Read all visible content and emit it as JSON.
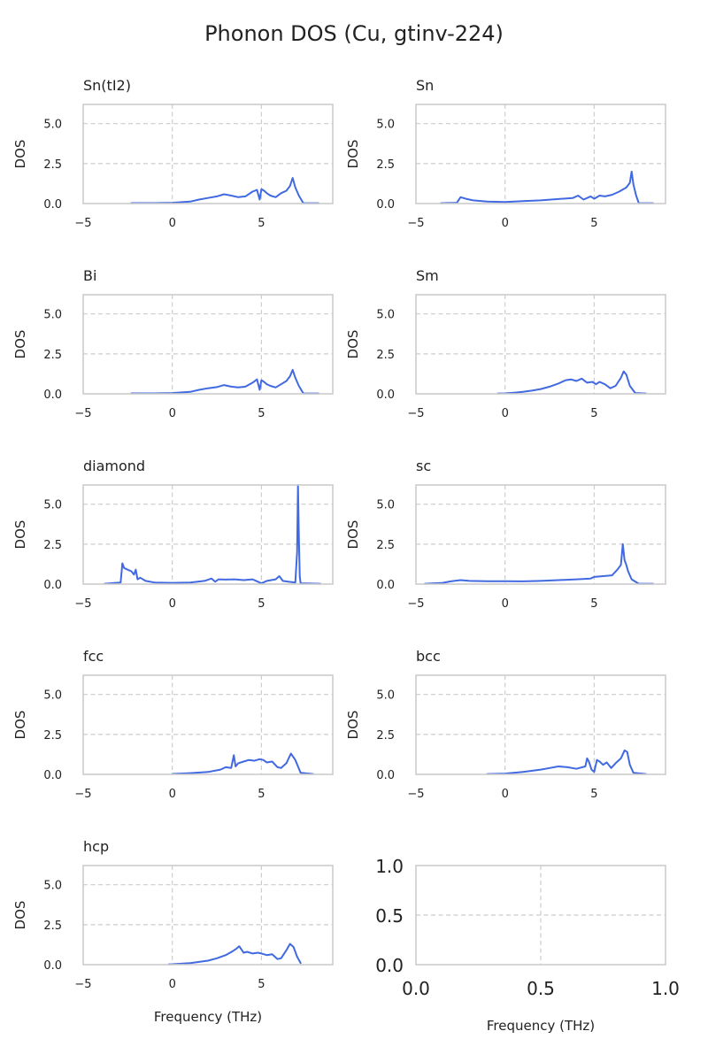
{
  "figure": {
    "title": "Phonon DOS (Cu, gtinv-224)",
    "xlabel": "Frequency (THz)",
    "ylabel": "DOS",
    "line_color": "#4169e1",
    "grid_color": "#cccccc"
  },
  "chart_data": [
    {
      "type": "line",
      "title": "Sn(tI2)",
      "xlim": [
        -5,
        9
      ],
      "ylim": [
        0,
        6.2
      ],
      "xticks": [
        -5,
        0,
        5
      ],
      "yticks": [
        0.0,
        2.5,
        5.0
      ],
      "ytick_labels": [
        "0.0",
        "2.5",
        "5.0"
      ],
      "grid": true,
      "ylabel": "DOS",
      "xlabel": "",
      "series": [
        {
          "x": [
            -2.3,
            -1,
            0,
            1,
            1.5,
            2,
            2.5,
            2.9,
            3.3,
            3.7,
            4.1,
            4.5,
            4.75,
            4.9,
            5.0,
            5.15,
            5.3,
            5.5,
            5.8,
            6.1,
            6.4,
            6.6,
            6.75,
            6.9,
            7.1,
            7.35,
            8.2
          ],
          "y": [
            0.03,
            0.03,
            0.05,
            0.12,
            0.25,
            0.35,
            0.45,
            0.58,
            0.5,
            0.4,
            0.45,
            0.75,
            0.85,
            0.25,
            0.9,
            0.8,
            0.65,
            0.5,
            0.4,
            0.65,
            0.8,
            1.1,
            1.6,
            1.0,
            0.5,
            0.02,
            0.02
          ]
        }
      ]
    },
    {
      "type": "line",
      "title": "Sn",
      "xlim": [
        -5,
        9
      ],
      "ylim": [
        0,
        6.2
      ],
      "xticks": [
        -5,
        0,
        5
      ],
      "yticks": [
        0.0,
        2.5,
        5.0
      ],
      "ytick_labels": [
        "0.0",
        "2.5",
        "5.0"
      ],
      "grid": true,
      "ylabel": "DOS",
      "xlabel": "",
      "series": [
        {
          "x": [
            -3.6,
            -2.7,
            -2.5,
            -2.2,
            -1.8,
            -1,
            0,
            1,
            2,
            3,
            3.8,
            4.1,
            4.4,
            4.8,
            5.0,
            5.3,
            5.6,
            6.0,
            6.4,
            6.8,
            7.0,
            7.1,
            7.2,
            7.35,
            7.5,
            8.3
          ],
          "y": [
            0.02,
            0.05,
            0.4,
            0.3,
            0.2,
            0.12,
            0.1,
            0.15,
            0.2,
            0.28,
            0.35,
            0.5,
            0.25,
            0.45,
            0.3,
            0.5,
            0.45,
            0.55,
            0.75,
            1.0,
            1.3,
            2.0,
            1.2,
            0.5,
            0.02,
            0.02
          ]
        }
      ]
    },
    {
      "type": "line",
      "title": "Bi",
      "xlim": [
        -5,
        9
      ],
      "ylim": [
        0,
        6.2
      ],
      "xticks": [
        -5,
        0,
        5
      ],
      "yticks": [
        0.0,
        2.5,
        5.0
      ],
      "ytick_labels": [
        "0.0",
        "2.5",
        "5.0"
      ],
      "grid": true,
      "ylabel": "DOS",
      "xlabel": "",
      "series": [
        {
          "x": [
            -2.3,
            -1,
            0,
            1,
            1.5,
            2,
            2.5,
            2.9,
            3.3,
            3.7,
            4.1,
            4.5,
            4.75,
            4.9,
            5.0,
            5.15,
            5.3,
            5.5,
            5.8,
            6.1,
            6.4,
            6.6,
            6.75,
            6.9,
            7.1,
            7.35,
            8.2
          ],
          "y": [
            0.03,
            0.03,
            0.05,
            0.12,
            0.25,
            0.35,
            0.42,
            0.55,
            0.45,
            0.4,
            0.45,
            0.7,
            0.9,
            0.25,
            0.85,
            0.75,
            0.6,
            0.5,
            0.4,
            0.6,
            0.8,
            1.1,
            1.5,
            1.0,
            0.5,
            0.02,
            0.02
          ]
        }
      ]
    },
    {
      "type": "line",
      "title": "Sm",
      "xlim": [
        -5,
        9
      ],
      "ylim": [
        0,
        6.2
      ],
      "xticks": [
        -5,
        0,
        5
      ],
      "yticks": [
        0.0,
        2.5,
        5.0
      ],
      "ytick_labels": [
        "0.0",
        "2.5",
        "5.0"
      ],
      "grid": true,
      "ylabel": "DOS",
      "xlabel": "",
      "series": [
        {
          "x": [
            -0.4,
            0,
            0.5,
            1,
            1.5,
            2,
            2.5,
            3,
            3.4,
            3.7,
            4.0,
            4.3,
            4.6,
            4.9,
            5.1,
            5.3,
            5.6,
            5.9,
            6.2,
            6.5,
            6.65,
            6.8,
            7.0,
            7.3,
            7.9
          ],
          "y": [
            0.02,
            0.03,
            0.07,
            0.12,
            0.2,
            0.3,
            0.45,
            0.65,
            0.85,
            0.9,
            0.8,
            0.95,
            0.7,
            0.75,
            0.6,
            0.75,
            0.6,
            0.35,
            0.5,
            1.0,
            1.4,
            1.2,
            0.5,
            0.05,
            0.02
          ]
        }
      ]
    },
    {
      "type": "line",
      "title": "diamond",
      "xlim": [
        -5,
        9
      ],
      "ylim": [
        0,
        6.2
      ],
      "xticks": [
        -5,
        0,
        5
      ],
      "yticks": [
        0.0,
        2.5,
        5.0
      ],
      "ytick_labels": [
        "0.0",
        "2.5",
        "5.0"
      ],
      "grid": true,
      "ylabel": "DOS",
      "xlabel": "",
      "series": [
        {
          "x": [
            -3.8,
            -2.9,
            -2.8,
            -2.7,
            -2.6,
            -2.3,
            -2.15,
            -2.05,
            -1.95,
            -1.8,
            -1.5,
            -1.0,
            0,
            1.0,
            1.8,
            2.2,
            2.4,
            2.6,
            3.0,
            3.5,
            4.0,
            4.5,
            4.8,
            5.0,
            5.3,
            5.8,
            6.0,
            6.2,
            6.5,
            6.9,
            7.0,
            7.05,
            7.1,
            7.15,
            7.2,
            8.3
          ],
          "y": [
            0.02,
            0.1,
            1.3,
            1.0,
            0.95,
            0.8,
            0.6,
            0.9,
            0.3,
            0.4,
            0.2,
            0.1,
            0.08,
            0.1,
            0.2,
            0.35,
            0.15,
            0.3,
            0.28,
            0.3,
            0.25,
            0.3,
            0.15,
            0.05,
            0.2,
            0.3,
            0.5,
            0.2,
            0.15,
            0.1,
            2.0,
            6.2,
            3.0,
            0.5,
            0.05,
            0.02
          ]
        }
      ]
    },
    {
      "type": "line",
      "title": "sc",
      "xlim": [
        -5,
        9
      ],
      "ylim": [
        0,
        6.2
      ],
      "xticks": [
        -5,
        0,
        5
      ],
      "yticks": [
        0.0,
        2.5,
        5.0
      ],
      "ytick_labels": [
        "0.0",
        "2.5",
        "5.0"
      ],
      "grid": true,
      "ylabel": "DOS",
      "xlabel": "",
      "series": [
        {
          "x": [
            -4.5,
            -3.5,
            -3,
            -2.5,
            -2,
            -1,
            0,
            1,
            2,
            3,
            4,
            4.8,
            5.0,
            5.5,
            6.0,
            6.3,
            6.5,
            6.6,
            6.7,
            6.8,
            6.9,
            7.1,
            7.5,
            8.3
          ],
          "y": [
            0.02,
            0.08,
            0.18,
            0.25,
            0.2,
            0.18,
            0.18,
            0.17,
            0.2,
            0.25,
            0.3,
            0.35,
            0.45,
            0.5,
            0.55,
            0.9,
            1.2,
            2.5,
            1.5,
            1.2,
            0.8,
            0.3,
            0.02,
            0.02
          ]
        }
      ]
    },
    {
      "type": "line",
      "title": "fcc",
      "xlim": [
        -5,
        9
      ],
      "ylim": [
        0,
        6.2
      ],
      "xticks": [
        -5,
        0,
        5
      ],
      "yticks": [
        0.0,
        2.5,
        5.0
      ],
      "ytick_labels": [
        "0.0",
        "2.5",
        "5.0"
      ],
      "grid": true,
      "ylabel": "DOS",
      "xlabel": "",
      "series": [
        {
          "x": [
            0,
            1,
            2,
            2.7,
            3.0,
            3.3,
            3.45,
            3.55,
            3.7,
            4.0,
            4.3,
            4.6,
            4.9,
            5.1,
            5.3,
            5.6,
            5.9,
            6.1,
            6.4,
            6.65,
            6.9,
            7.2,
            7.9
          ],
          "y": [
            0.03,
            0.08,
            0.15,
            0.3,
            0.45,
            0.4,
            1.2,
            0.5,
            0.7,
            0.8,
            0.9,
            0.85,
            0.95,
            0.9,
            0.75,
            0.8,
            0.45,
            0.4,
            0.7,
            1.3,
            0.9,
            0.1,
            0.02
          ]
        }
      ]
    },
    {
      "type": "line",
      "title": "bcc",
      "xlim": [
        -5,
        9
      ],
      "ylim": [
        0,
        6.2
      ],
      "xticks": [
        -5,
        0,
        5
      ],
      "yticks": [
        0.0,
        2.5,
        5.0
      ],
      "ytick_labels": [
        "0.0",
        "2.5",
        "5.0"
      ],
      "grid": true,
      "ylabel": "DOS",
      "xlabel": "",
      "series": [
        {
          "x": [
            -1.0,
            0,
            1,
            2,
            2.5,
            3.0,
            3.5,
            4.0,
            4.5,
            4.6,
            4.7,
            4.85,
            5.0,
            5.15,
            5.3,
            5.5,
            5.7,
            5.95,
            6.2,
            6.5,
            6.7,
            6.85,
            7.0,
            7.2,
            7.9
          ],
          "y": [
            0.02,
            0.05,
            0.15,
            0.3,
            0.4,
            0.5,
            0.45,
            0.35,
            0.5,
            1.0,
            0.8,
            0.3,
            0.15,
            0.9,
            0.8,
            0.6,
            0.75,
            0.4,
            0.7,
            1.0,
            1.5,
            1.4,
            0.6,
            0.1,
            0.02
          ]
        }
      ]
    },
    {
      "type": "line",
      "title": "hcp",
      "xlim": [
        -5,
        9
      ],
      "ylim": [
        0,
        6.2
      ],
      "xticks": [
        -5,
        0,
        5
      ],
      "yticks": [
        0.0,
        2.5,
        5.0
      ],
      "ytick_labels": [
        "0.0",
        "2.5",
        "5.0"
      ],
      "grid": true,
      "ylabel": "DOS",
      "xlabel": "Frequency (THz)",
      "series": [
        {
          "x": [
            -0.2,
            0,
            1,
            2,
            2.5,
            3.0,
            3.4,
            3.6,
            3.75,
            4.0,
            4.2,
            4.5,
            4.8,
            5.0,
            5.3,
            5.6,
            5.9,
            6.1,
            6.4,
            6.6,
            6.8,
            7.0,
            7.2
          ],
          "y": [
            0.02,
            0.03,
            0.1,
            0.25,
            0.4,
            0.6,
            0.85,
            1.0,
            1.15,
            0.75,
            0.8,
            0.7,
            0.75,
            0.7,
            0.6,
            0.65,
            0.35,
            0.4,
            0.9,
            1.3,
            1.1,
            0.5,
            0.1
          ]
        }
      ]
    },
    {
      "type": "line",
      "title": "",
      "empty": true,
      "xlim": [
        0,
        1
      ],
      "ylim": [
        0,
        1
      ],
      "xticks": [
        0.0,
        0.5,
        1.0
      ],
      "xtick_labels": [
        "0.0",
        "0.5",
        "1.0"
      ],
      "yticks": [
        0.0,
        0.5,
        1.0
      ],
      "ytick_labels": [
        "0.0",
        "0.5",
        "1.0"
      ],
      "grid": true,
      "ylabel": "",
      "xlabel": "Frequency (THz)",
      "series": []
    }
  ]
}
